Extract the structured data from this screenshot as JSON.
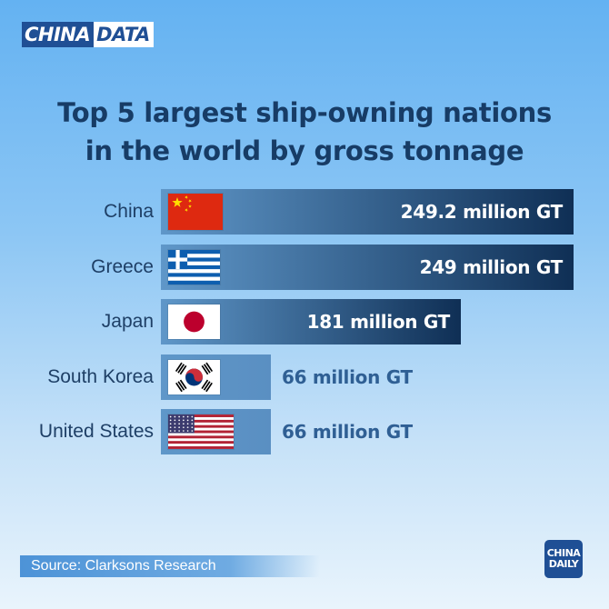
{
  "brand": {
    "part1": "CHINA",
    "part2": "DATA"
  },
  "title": {
    "line1": "Top 5 largest ship-owning nations",
    "line2": "in the world by gross tonnage"
  },
  "source": "Source: Clarksons Research",
  "logo": {
    "line1": "CHINA",
    "line2": "DAILY"
  },
  "colors": {
    "title": "#173c66",
    "bar_dark": "#0f2f55",
    "bar_light": "#5f97c9",
    "value_outside": "#2f5f94",
    "value_inside": "#ffffff"
  },
  "chart_data": {
    "type": "bar",
    "orientation": "horizontal",
    "title": "Top 5 largest ship-owning nations in the world by gross tonnage",
    "unit": "million GT",
    "categories": [
      "China",
      "Greece",
      "Japan",
      "South Korea",
      "United States"
    ],
    "values": [
      249.2,
      249,
      181,
      66,
      66
    ],
    "value_labels": [
      "249.2 million GT",
      "249 million GT",
      "181 million GT",
      "66 million GT",
      "66 million GT"
    ],
    "flags": [
      "china-flag-icon",
      "greece-flag-icon",
      "japan-flag-icon",
      "south-korea-flag-icon",
      "usa-flag-icon"
    ],
    "xlim": [
      0,
      249.2
    ],
    "grid": false,
    "legend": "none"
  }
}
